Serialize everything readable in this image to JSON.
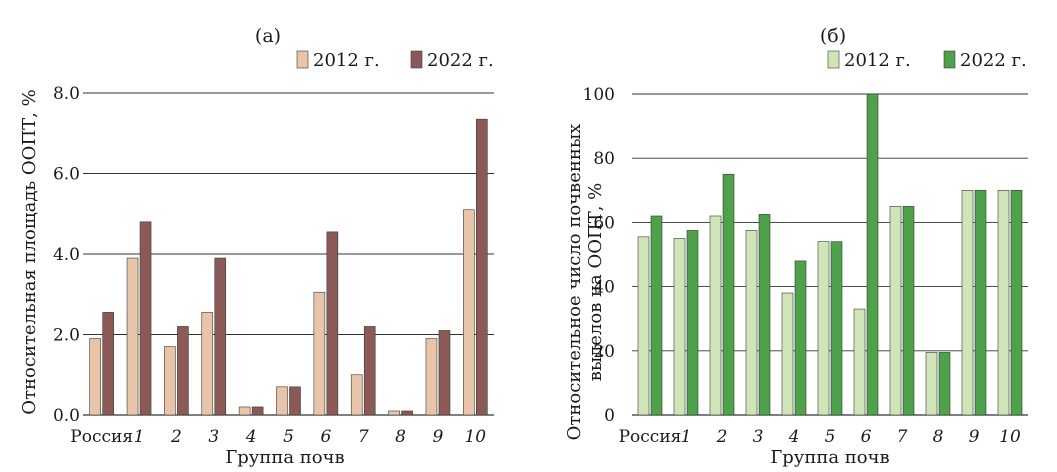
{
  "chart_data": [
    {
      "type": "bar",
      "panel_label": "(а)",
      "title": "",
      "xlabel": "Группа почв",
      "ylabel": "Относительная площадь ООПТ, %",
      "categories": [
        "Россия",
        "1",
        "2",
        "3",
        "4",
        "5",
        "6",
        "7",
        "8",
        "9",
        "10"
      ],
      "ylim": [
        0,
        8
      ],
      "yticks": [
        "0.0",
        "2.0",
        "4.0",
        "6.0",
        "8.0"
      ],
      "ytick_values": [
        0,
        2,
        4,
        6,
        8
      ],
      "grid": true,
      "legend_position": "top-right",
      "series": [
        {
          "name": "2012 г.",
          "color": "#e8c4a8",
          "values": [
            1.9,
            3.9,
            1.7,
            2.55,
            0.2,
            0.7,
            3.05,
            1.0,
            0.1,
            1.9,
            5.1
          ]
        },
        {
          "name": "2022 г.",
          "color": "#8b5a56",
          "values": [
            2.55,
            4.8,
            2.2,
            3.9,
            0.2,
            0.7,
            4.55,
            2.2,
            0.1,
            2.1,
            7.35
          ]
        }
      ]
    },
    {
      "type": "bar",
      "panel_label": "(б)",
      "title": "",
      "xlabel": "Группа почв",
      "ylabel_line1": "Относительное число почвенных",
      "ylabel_line2": "выделов на ООПТ, %",
      "categories": [
        "Россия",
        "1",
        "2",
        "3",
        "4",
        "5",
        "6",
        "7",
        "8",
        "9",
        "10"
      ],
      "ylim": [
        0,
        100
      ],
      "yticks": [
        "0",
        "20",
        "40",
        "60",
        "80",
        "100"
      ],
      "ytick_values": [
        0,
        20,
        40,
        60,
        80,
        100
      ],
      "grid": true,
      "legend_position": "top-right",
      "series": [
        {
          "name": "2012 г.",
          "color": "#cfe5b8",
          "values": [
            55.5,
            55,
            62,
            57.5,
            38,
            54,
            33,
            65,
            19.5,
            70,
            70
          ]
        },
        {
          "name": "2022 г.",
          "color": "#4da24a",
          "values": [
            62,
            57.5,
            75,
            62.5,
            48,
            54,
            100,
            65,
            19.5,
            70,
            70
          ]
        }
      ]
    }
  ]
}
